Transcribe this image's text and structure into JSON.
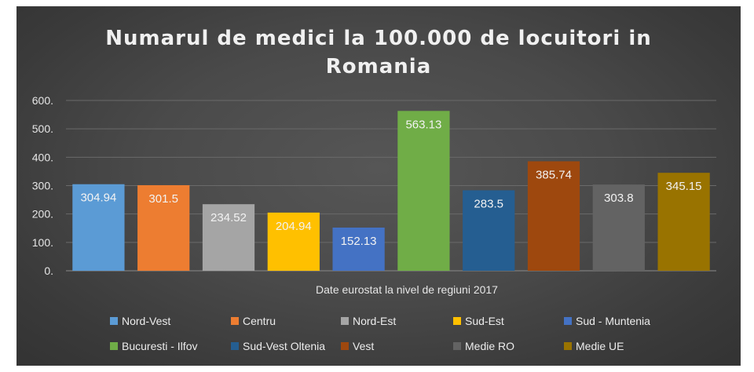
{
  "chart_data": {
    "type": "bar",
    "title": [
      "Numarul de medici la 100.000 de locuitori in",
      "Romania"
    ],
    "xlabel": "Date eurostat la nivel de regiuni 2017",
    "ylabel": "",
    "ylim": [
      0,
      600
    ],
    "yticks": [
      "0.",
      "100.",
      "200.",
      "300.",
      "400.",
      "500.",
      "600."
    ],
    "grid": true,
    "legend_position": "bottom",
    "series": [
      {
        "name": "Nord-Vest",
        "values": [
          304.94
        ],
        "label": "304.94",
        "color": "#5b9bd5"
      },
      {
        "name": "Centru",
        "values": [
          301.5
        ],
        "label": "301.5",
        "color": "#ed7d31"
      },
      {
        "name": "Nord-Est",
        "values": [
          234.52
        ],
        "label": "234.52",
        "color": "#a5a5a5"
      },
      {
        "name": "Sud-Est",
        "values": [
          204.94
        ],
        "label": "204.94",
        "color": "#ffc000"
      },
      {
        "name": "Sud - Muntenia",
        "values": [
          152.13
        ],
        "label": "152.13",
        "color": "#4472c4"
      },
      {
        "name": "Bucuresti - Ilfov",
        "values": [
          563.13
        ],
        "label": "563.13",
        "color": "#70ad47"
      },
      {
        "name": "Sud-Vest Oltenia",
        "values": [
          283.5
        ],
        "label": "283.5",
        "color": "#255e91"
      },
      {
        "name": "Vest",
        "values": [
          385.74
        ],
        "label": "385.74",
        "color": "#9e480e"
      },
      {
        "name": "Medie RO",
        "values": [
          303.8
        ],
        "label": "303.8",
        "color": "#636363"
      },
      {
        "name": "Medie UE",
        "values": [
          345.15
        ],
        "label": "345.15",
        "color": "#997300"
      }
    ]
  }
}
